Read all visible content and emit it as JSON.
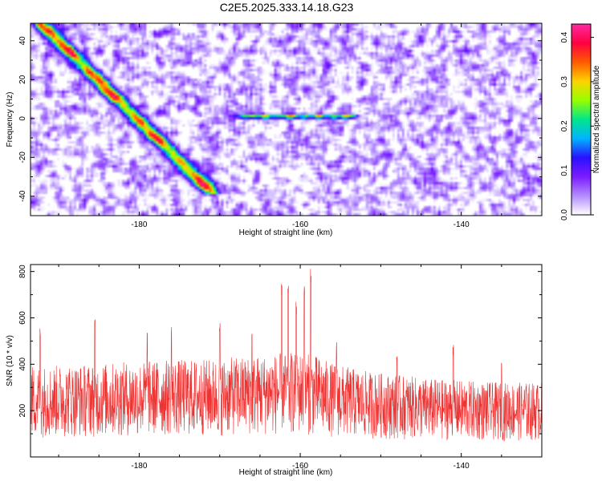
{
  "title": "C2E5.2025.333.14.18.G23",
  "colors": {
    "snr_line": "#ee3333",
    "axis": "#000000",
    "background": "#ffffff"
  },
  "chart_data": [
    {
      "type": "heatmap",
      "xlabel": "Height of straight line (km)",
      "ylabel": "Frequency (Hz)",
      "xlim": [
        -193.5,
        -130
      ],
      "ylim": [
        -50,
        49
      ],
      "xticks": [
        -180,
        -160,
        -140
      ],
      "yticks": [
        -40,
        -20,
        0,
        20,
        40
      ],
      "colorbar": {
        "label": "Normalized spectral amplitude",
        "range": [
          0.0,
          0.43
        ],
        "ticks": [
          "0.0",
          "0.1",
          "0.2",
          "0.3",
          "0.4"
        ],
        "colormap": [
          "#ffffff",
          "#b38cff",
          "#7a1cff",
          "#2a10ff",
          "#00b4ff",
          "#00e68a",
          "#96ff00",
          "#ffd200",
          "#ff5a00",
          "#ff0040",
          "#ff2aa0"
        ]
      },
      "features": [
        {
          "label": "diagonal track",
          "from": [
            -193,
            52
          ],
          "to": [
            -171,
            -38
          ],
          "peak": 0.4
        },
        {
          "label": "horizontal band near 0 Hz",
          "from": [
            -167,
            1
          ],
          "to": [
            -154,
            1
          ],
          "peak": 0.3
        }
      ]
    },
    {
      "type": "line",
      "xlabel": "Height of straight line (km)",
      "ylabel": "SNR (10 * v/v)",
      "xlim": [
        -193.5,
        -130
      ],
      "ylim": [
        0,
        830
      ],
      "xticks": [
        -180,
        -160,
        -140
      ],
      "yticks": [
        200,
        400,
        600,
        800
      ],
      "series": [
        {
          "color": "#ee3333",
          "envelope_x": [
            -193.5,
            -190,
            -185,
            -180,
            -176,
            -172,
            -169,
            -166,
            -163,
            -161,
            -160,
            -158,
            -156,
            -152,
            -148,
            -144,
            -140,
            -136,
            -133,
            -130
          ],
          "envelope_y": [
            240,
            240,
            245,
            250,
            255,
            255,
            260,
            265,
            270,
            275,
            275,
            265,
            245,
            225,
            215,
            205,
            200,
            195,
            195,
            195
          ],
          "spikes": [
            [
              -192.3,
              560
            ],
            [
              -185.5,
              610
            ],
            [
              -179,
              560
            ],
            [
              -176,
              590
            ],
            [
              -170,
              580
            ],
            [
              -166,
              560
            ],
            [
              -162.3,
              775
            ],
            [
              -161.5,
              760
            ],
            [
              -160.5,
              670
            ],
            [
              -159.5,
              760
            ],
            [
              -158.7,
              830
            ],
            [
              -155.5,
              510
            ],
            [
              -148,
              450
            ],
            [
              -141,
              490
            ],
            [
              -135,
              420
            ]
          ]
        }
      ]
    }
  ]
}
